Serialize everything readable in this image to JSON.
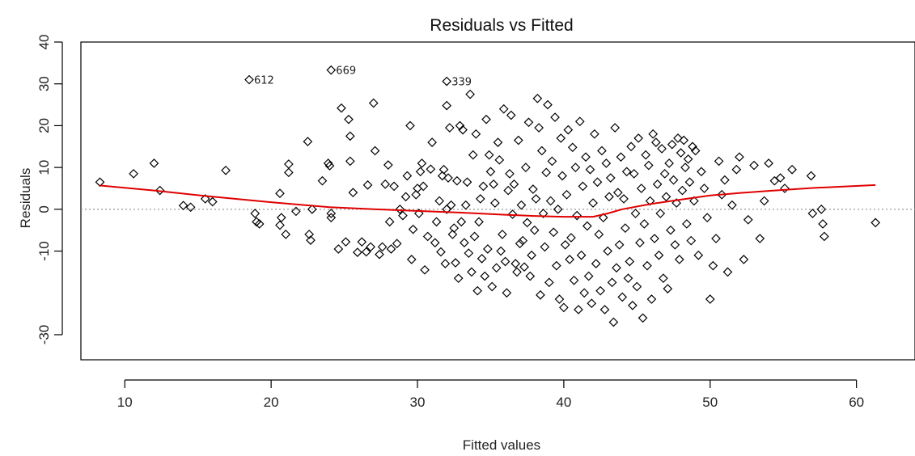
{
  "chart_data": {
    "type": "scatter",
    "title": "Residuals vs Fitted",
    "xlabel": "Fitted values",
    "ylabel": "Residuals",
    "xlim": [
      7,
      64
    ],
    "ylim": [
      -36,
      40
    ],
    "xticks": [
      10,
      20,
      30,
      40,
      50,
      60
    ],
    "yticks": [
      -30,
      -10,
      0,
      10,
      20,
      30,
      40
    ],
    "grid": false,
    "reference_line": {
      "y": 0,
      "color": "#999999",
      "style": "dotted"
    },
    "marker": "diamond-open",
    "smooth_color": "#e00000",
    "labeled_points": [
      {
        "label": "612",
        "x": 18.5,
        "y": 31
      },
      {
        "label": "669",
        "x": 24.1,
        "y": 33.3
      },
      {
        "label": "339",
        "x": 32.0,
        "y": 30.6
      }
    ],
    "smooth_line": {
      "x": [
        8.3,
        12,
        16,
        20,
        24,
        27,
        30,
        33,
        36,
        38,
        40,
        42,
        43,
        44,
        46,
        48,
        50,
        52,
        54,
        57,
        61.3
      ],
      "y": [
        5.7,
        4.5,
        3.0,
        1.7,
        0.5,
        0,
        -0.4,
        -0.8,
        -1.3,
        -1.6,
        -1.8,
        -1.8,
        -1.0,
        0,
        1.3,
        2.3,
        3.3,
        3.9,
        4.4,
        5.1,
        5.8
      ]
    },
    "points": {
      "x": [
        8.3,
        10.6,
        12.0,
        12.4,
        14.0,
        14.5,
        15.5,
        16.0,
        16.9,
        18.9,
        19.0,
        19.2,
        20.6,
        20.7,
        20.6,
        21.0,
        21.2,
        21.2,
        21.7,
        22.5,
        22.6,
        22.7,
        22.8,
        23.5,
        23.9,
        24.0,
        24.1,
        24.1,
        24.6,
        24.8,
        25.1,
        25.3,
        25.4,
        25.4,
        25.6,
        25.9,
        26.2,
        26.5,
        26.6,
        26.8,
        27.0,
        27.1,
        27.4,
        27.6,
        27.8,
        28.0,
        28.1,
        28.2,
        28.4,
        28.6,
        28.8,
        29.0,
        29.2,
        29.3,
        29.5,
        29.6,
        29.7,
        29.9,
        30.0,
        30.1,
        30.2,
        30.3,
        30.4,
        30.5,
        30.7,
        30.9,
        31.0,
        31.2,
        31.3,
        31.5,
        31.6,
        31.7,
        31.8,
        31.9,
        32.0,
        32.0,
        32.1,
        32.2,
        32.3,
        32.4,
        32.5,
        32.6,
        32.7,
        32.8,
        32.9,
        33.0,
        33.1,
        33.2,
        33.3,
        33.4,
        33.5,
        33.6,
        33.7,
        33.8,
        33.9,
        34.0,
        34.1,
        34.2,
        34.3,
        34.4,
        34.5,
        34.6,
        34.7,
        34.8,
        34.9,
        35.0,
        35.1,
        35.2,
        35.3,
        35.4,
        35.5,
        35.6,
        35.7,
        35.8,
        35.9,
        36.0,
        36.1,
        36.2,
        36.3,
        36.4,
        36.5,
        36.6,
        36.7,
        36.8,
        36.9,
        37.0,
        37.1,
        37.2,
        37.3,
        37.4,
        37.5,
        37.6,
        37.7,
        37.8,
        37.9,
        38.0,
        38.1,
        38.2,
        38.3,
        38.4,
        38.5,
        38.6,
        38.7,
        38.8,
        38.9,
        39.0,
        39.1,
        39.2,
        39.3,
        39.4,
        39.5,
        39.6,
        39.7,
        39.8,
        39.9,
        40.0,
        40.1,
        40.2,
        40.3,
        40.4,
        40.5,
        40.6,
        40.7,
        40.8,
        40.9,
        41.0,
        41.1,
        41.2,
        41.3,
        41.4,
        41.5,
        41.6,
        41.7,
        41.8,
        41.9,
        42.0,
        42.1,
        42.2,
        42.3,
        42.4,
        42.5,
        42.6,
        42.7,
        42.8,
        42.9,
        43.0,
        43.1,
        43.2,
        43.3,
        43.4,
        43.5,
        43.6,
        43.7,
        43.8,
        43.9,
        44.0,
        44.1,
        44.2,
        44.3,
        44.4,
        44.5,
        44.6,
        44.7,
        44.8,
        44.9,
        45.0,
        45.1,
        45.2,
        45.3,
        45.4,
        45.5,
        45.6,
        45.7,
        45.8,
        45.9,
        46.0,
        46.1,
        46.2,
        46.3,
        46.4,
        46.5,
        46.6,
        46.7,
        46.8,
        46.9,
        47.0,
        47.1,
        47.2,
        47.3,
        47.4,
        47.5,
        47.6,
        47.7,
        47.8,
        47.9,
        48.0,
        48.1,
        48.2,
        48.3,
        48.4,
        48.5,
        48.6,
        48.7,
        48.8,
        48.9,
        49.0,
        49.2,
        49.4,
        49.6,
        49.8,
        50.0,
        50.2,
        50.4,
        50.6,
        50.8,
        51.0,
        51.2,
        51.5,
        51.8,
        52.0,
        52.3,
        52.6,
        53.0,
        53.4,
        53.7,
        54.0,
        54.4,
        54.8,
        55.1,
        55.6,
        56.9,
        57.0,
        57.6,
        57.7,
        57.8,
        61.3
      ],
      "y": [
        6.5,
        8.5,
        11.0,
        4.5,
        0.9,
        0.5,
        2.5,
        1.8,
        9.3,
        -1.0,
        -3.0,
        -3.5,
        3.8,
        -2.0,
        -3.8,
        -6.0,
        10.8,
        8.8,
        -0.5,
        16.2,
        -6.0,
        -7.4,
        0.0,
        6.8,
        11.0,
        10.4,
        -1.0,
        -2.0,
        -9.5,
        24.2,
        -7.8,
        21.5,
        17.5,
        11.5,
        4.0,
        -10.3,
        -7.8,
        -10.2,
        5.8,
        -9.0,
        25.4,
        14.0,
        -10.8,
        -9.0,
        6.0,
        10.6,
        -3.0,
        -9.5,
        5.5,
        -8.2,
        0.0,
        -1.5,
        3.0,
        8.0,
        20.0,
        -12.0,
        -4.8,
        3.5,
        5.0,
        -1.0,
        9.0,
        11.0,
        5.5,
        -14.5,
        -6.5,
        9.6,
        16.0,
        -8.0,
        -3.0,
        2.0,
        -10.2,
        8.0,
        9.5,
        -13.0,
        0.0,
        24.8,
        7.5,
        19.5,
        1.0,
        -6.0,
        -4.5,
        -12.8,
        6.8,
        -16.5,
        20.0,
        -3.0,
        19.0,
        -8.0,
        1.0,
        6.5,
        -10.5,
        27.5,
        -15.0,
        13.0,
        -6.5,
        18.0,
        -19.5,
        -3.0,
        2.5,
        -11.8,
        5.5,
        -16.0,
        21.5,
        -9.5,
        13.0,
        9.0,
        -18.5,
        6.0,
        1.5,
        -14.0,
        16.0,
        11.8,
        -10.0,
        -6.0,
        24.0,
        -12.5,
        -20.0,
        4.5,
        8.5,
        22.5,
        -1.2,
        6.0,
        -13.0,
        -15.0,
        16.5,
        -8.2,
        1.0,
        -7.5,
        -13.8,
        10.0,
        -3.2,
        20.8,
        -16.0,
        -11.0,
        4.8,
        -5.0,
        2.5,
        26.5,
        19.5,
        -20.5,
        14.0,
        -1.0,
        -9.0,
        8.8,
        25.0,
        -17.5,
        2.0,
        11.5,
        -5.5,
        22.0,
        -13.5,
        0.0,
        -21.5,
        17.0,
        8.0,
        -23.5,
        -8.5,
        3.5,
        19.0,
        -12.0,
        -6.8,
        14.8,
        -17.0,
        10.0,
        -1.5,
        -24.0,
        21.0,
        -11.0,
        5.5,
        -20.0,
        12.5,
        -4.0,
        -16.0,
        9.5,
        -22.5,
        1.5,
        18.0,
        -13.0,
        6.5,
        -6.0,
        -19.5,
        14.0,
        -2.0,
        -24.0,
        11.0,
        -10.0,
        3.0,
        7.5,
        -17.5,
        -27.0,
        19.5,
        -14.0,
        4.0,
        -8.5,
        12.5,
        -21.0,
        2.5,
        -4.5,
        9.0,
        -16.5,
        -12.5,
        15.0,
        -23.0,
        8.5,
        -1.0,
        -18.5,
        17.0,
        -8.0,
        5.0,
        -26.0,
        -3.5,
        13.0,
        -13.5,
        10.5,
        2.0,
        -21.5,
        18.0,
        -7.0,
        16.0,
        6.0,
        -11.0,
        -1.0,
        14.5,
        -16.5,
        8.5,
        3.0,
        -19.0,
        11.0,
        -5.0,
        15.5,
        7.0,
        -8.5,
        1.5,
        17.0,
        -12.0,
        13.5,
        4.5,
        16.5,
        10.0,
        -3.5,
        12.0,
        6.5,
        -7.5,
        15.0,
        2.0,
        14.0,
        -11.0,
        9.0,
        5.0,
        -2.0,
        -21.5,
        -13.5,
        -7.0,
        11.5,
        3.5,
        7.0,
        -15.0,
        1.0,
        9.5,
        12.5,
        -12.0,
        -2.5,
        10.5,
        -7.0,
        2.0,
        11.0,
        6.8,
        7.5,
        5.0,
        9.5,
        8.0,
        -1.0,
        0.0,
        -3.5,
        -6.5,
        -3.2
      ]
    }
  }
}
